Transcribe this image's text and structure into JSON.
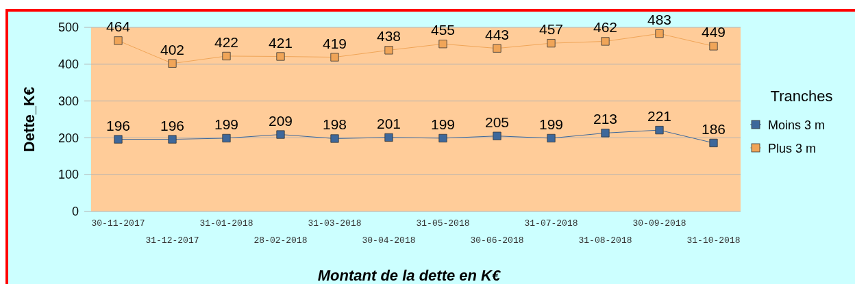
{
  "chart_data": {
    "type": "line",
    "xlabel": "Montant de la dette en K€",
    "ylabel": "Dette_K€",
    "legend_title": "Tranches",
    "categories": [
      "30-11-2017",
      "31-12-2017",
      "31-01-2018",
      "28-02-2018",
      "31-03-2018",
      "30-04-2018",
      "31-05-2018",
      "30-06-2018",
      "31-07-2018",
      "31-08-2018",
      "30-09-2018",
      "31-10-2018"
    ],
    "series": [
      {
        "name": "Moins 3 m",
        "color": "#3e689b",
        "values": [
          196,
          196,
          199,
          209,
          198,
          201,
          199,
          205,
          199,
          213,
          221,
          186
        ]
      },
      {
        "name": "Plus 3 m",
        "color": "#f0a558",
        "values": [
          464,
          402,
          422,
          421,
          419,
          438,
          455,
          443,
          457,
          462,
          483,
          449
        ]
      }
    ],
    "ylim": [
      0,
      500
    ],
    "yticks": [
      0,
      100,
      200,
      300,
      400,
      500
    ],
    "grid": "y",
    "legend": "right",
    "marker": "square",
    "line_style": "solid",
    "data_labels": true
  }
}
